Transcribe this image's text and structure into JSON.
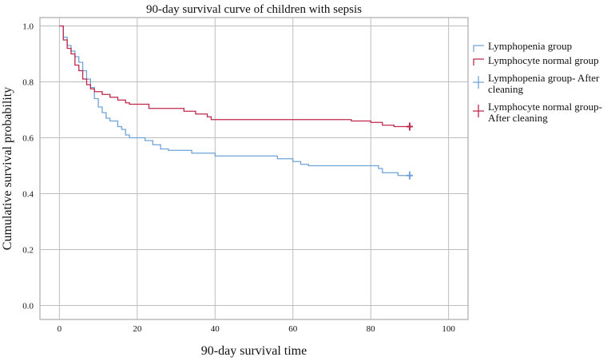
{
  "chart_data": {
    "type": "line",
    "title": "90-day survival curve of children with sepsis",
    "xlabel": "90-day survival time",
    "ylabel": "Cumulative survival probability",
    "xlim": [
      -5,
      105
    ],
    "ylim": [
      -0.05,
      1.03
    ],
    "x_ticks": [
      0,
      20,
      40,
      60,
      80,
      100
    ],
    "y_ticks": [
      0.0,
      0.2,
      0.4,
      0.6,
      0.8,
      1.0
    ],
    "x_tick_labels": [
      "0",
      "20",
      "40",
      "60",
      "80",
      "100"
    ],
    "y_tick_labels": [
      "0.0",
      "0.2",
      "0.4",
      "0.6",
      "0.8",
      "1.0"
    ],
    "grid": true,
    "legend_position": "right",
    "series": [
      {
        "name": "Lymphopenia group",
        "censor_label": "Lymphopenia group- After cleaning",
        "color": "#6fa3d8",
        "points": [
          [
            0,
            1.0
          ],
          [
            1,
            0.96
          ],
          [
            2,
            0.93
          ],
          [
            3,
            0.91
          ],
          [
            4,
            0.89
          ],
          [
            5,
            0.87
          ],
          [
            6,
            0.84
          ],
          [
            7,
            0.81
          ],
          [
            8,
            0.78
          ],
          [
            9,
            0.74
          ],
          [
            10,
            0.71
          ],
          [
            11,
            0.69
          ],
          [
            12,
            0.67
          ],
          [
            13,
            0.66
          ],
          [
            15,
            0.64
          ],
          [
            16,
            0.63
          ],
          [
            17,
            0.61
          ],
          [
            18,
            0.6
          ],
          [
            22,
            0.59
          ],
          [
            24,
            0.575
          ],
          [
            26,
            0.56
          ],
          [
            28,
            0.555
          ],
          [
            34,
            0.545
          ],
          [
            40,
            0.535
          ],
          [
            56,
            0.525
          ],
          [
            60,
            0.515
          ],
          [
            62,
            0.505
          ],
          [
            64,
            0.5
          ],
          [
            82,
            0.49
          ],
          [
            83,
            0.475
          ],
          [
            87,
            0.465
          ],
          [
            90,
            0.465
          ]
        ],
        "censor": [
          [
            90,
            0.465
          ]
        ]
      },
      {
        "name": "Lymphocyte normal group",
        "censor_label": "Lymphocyte normal group- After cleaning",
        "color": "#c0274c",
        "points": [
          [
            0,
            1.0
          ],
          [
            1,
            0.95
          ],
          [
            2,
            0.92
          ],
          [
            3,
            0.9
          ],
          [
            4,
            0.86
          ],
          [
            5,
            0.84
          ],
          [
            6,
            0.81
          ],
          [
            7,
            0.79
          ],
          [
            8,
            0.775
          ],
          [
            9,
            0.765
          ],
          [
            11,
            0.755
          ],
          [
            13,
            0.745
          ],
          [
            15,
            0.735
          ],
          [
            17,
            0.725
          ],
          [
            18,
            0.72
          ],
          [
            23,
            0.705
          ],
          [
            32,
            0.695
          ],
          [
            35,
            0.685
          ],
          [
            38,
            0.675
          ],
          [
            39,
            0.665
          ],
          [
            75,
            0.66
          ],
          [
            80,
            0.655
          ],
          [
            83,
            0.645
          ],
          [
            86,
            0.64
          ],
          [
            90,
            0.64
          ]
        ],
        "censor": [
          [
            90,
            0.64
          ]
        ]
      }
    ]
  }
}
